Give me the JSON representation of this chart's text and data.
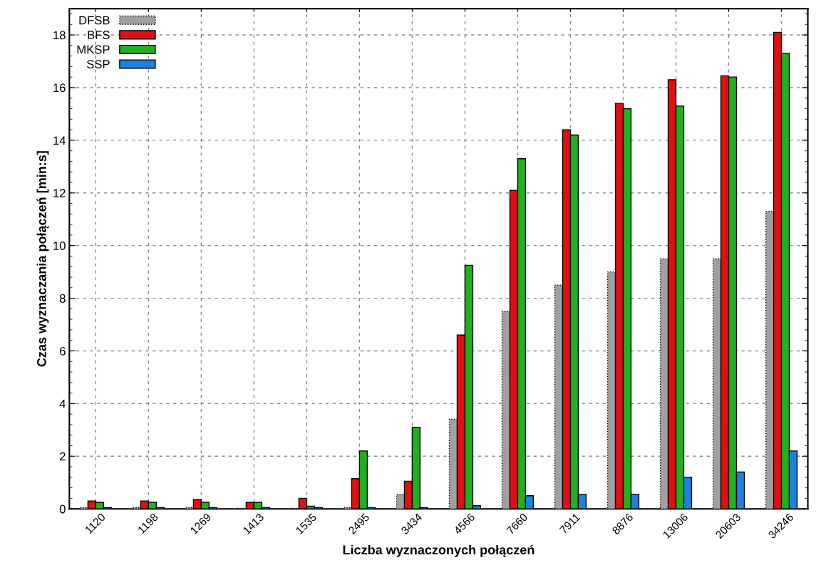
{
  "chart_data": {
    "type": "bar",
    "xlabel": "Liczba wyznaczonych połączeń",
    "ylabel": "Czas wyznaczania połączeń [min:s]",
    "categories": [
      "1120",
      "1198",
      "1269",
      "1413",
      "1535",
      "2495",
      "3434",
      "4566",
      "7660",
      "7911",
      "8876",
      "13006",
      "20603",
      "34246"
    ],
    "series": [
      {
        "name": "DFSB",
        "color": "#a0a0a0",
        "line_style": "dotted",
        "values": [
          0.05,
          0.05,
          0.05,
          0.02,
          0.02,
          0.05,
          0.55,
          3.4,
          7.5,
          8.5,
          9.0,
          9.5,
          9.5,
          11.3
        ]
      },
      {
        "name": "BFS",
        "color": "#e01010",
        "values": [
          0.3,
          0.3,
          0.35,
          0.25,
          0.4,
          1.15,
          1.05,
          6.6,
          12.1,
          14.4,
          15.4,
          16.3,
          16.45,
          18.1
        ]
      },
      {
        "name": "MKSP",
        "color": "#20b020",
        "values": [
          0.25,
          0.25,
          0.25,
          0.25,
          0.1,
          2.2,
          3.1,
          9.25,
          13.3,
          14.2,
          15.2,
          15.3,
          16.4,
          17.3
        ]
      },
      {
        "name": "SSP",
        "color": "#2080e0",
        "values": [
          0.05,
          0.05,
          0.05,
          0.05,
          0.05,
          0.05,
          0.05,
          0.12,
          0.5,
          0.55,
          0.55,
          1.2,
          1.4,
          2.2
        ]
      }
    ],
    "ylim": [
      0,
      19
    ],
    "yticks": [
      0,
      2,
      4,
      6,
      8,
      10,
      12,
      14,
      16,
      18
    ],
    "grid": true,
    "legend": "top left"
  }
}
